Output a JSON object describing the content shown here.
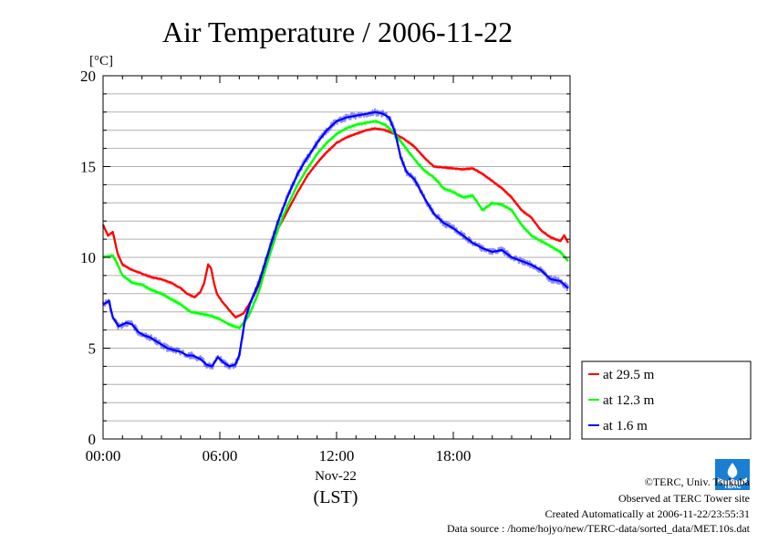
{
  "chart_data": {
    "type": "line",
    "title": "Air Temperature / 2006-11-22",
    "ylabel": "[°C]",
    "xlabel": "(LST)",
    "date_label": "Nov-22",
    "ylim": [
      0,
      20
    ],
    "xlim": [
      0,
      24
    ],
    "yticks": [
      "0",
      "5",
      "10",
      "15",
      "20"
    ],
    "xticks": [
      {
        "hour": 0,
        "label": "00:00"
      },
      {
        "hour": 6,
        "label": "06:00"
      },
      {
        "hour": 12,
        "label": "12:00"
      },
      {
        "hour": 18,
        "label": "18:00"
      }
    ],
    "grid": true,
    "legend_position": "bottom-right",
    "series": [
      {
        "name": "at 29.5 m",
        "color": "#ff0000",
        "points": [
          [
            0,
            11.8
          ],
          [
            0.25,
            11.2
          ],
          [
            0.5,
            11.4
          ],
          [
            0.75,
            10.2
          ],
          [
            1.0,
            9.6
          ],
          [
            1.5,
            9.3
          ],
          [
            2.0,
            9.1
          ],
          [
            2.5,
            8.9
          ],
          [
            3.0,
            8.8
          ],
          [
            3.5,
            8.6
          ],
          [
            4.0,
            8.3
          ],
          [
            4.3,
            8.0
          ],
          [
            4.7,
            7.8
          ],
          [
            5.0,
            8.1
          ],
          [
            5.2,
            8.6
          ],
          [
            5.4,
            9.6
          ],
          [
            5.55,
            9.4
          ],
          [
            5.7,
            8.6
          ],
          [
            5.85,
            8.0
          ],
          [
            6.1,
            7.6
          ],
          [
            6.4,
            7.2
          ],
          [
            6.8,
            6.7
          ],
          [
            7.2,
            6.9
          ],
          [
            7.5,
            7.4
          ],
          [
            7.8,
            8.0
          ],
          [
            8.2,
            9.0
          ],
          [
            8.6,
            10.3
          ],
          [
            9.0,
            11.6
          ],
          [
            9.5,
            12.6
          ],
          [
            10.0,
            13.6
          ],
          [
            10.5,
            14.5
          ],
          [
            11.0,
            15.2
          ],
          [
            11.5,
            15.8
          ],
          [
            12.0,
            16.3
          ],
          [
            12.5,
            16.6
          ],
          [
            13.0,
            16.8
          ],
          [
            13.5,
            17.0
          ],
          [
            14.0,
            17.1
          ],
          [
            14.5,
            17.0
          ],
          [
            15.0,
            16.8
          ],
          [
            15.5,
            16.5
          ],
          [
            16.0,
            16.1
          ],
          [
            16.5,
            15.5
          ],
          [
            17.0,
            15.0
          ],
          [
            17.5,
            14.95
          ],
          [
            18.0,
            14.9
          ],
          [
            18.5,
            14.85
          ],
          [
            19.0,
            14.9
          ],
          [
            19.5,
            14.6
          ],
          [
            20.0,
            14.2
          ],
          [
            20.5,
            13.8
          ],
          [
            21.0,
            13.3
          ],
          [
            21.5,
            12.6
          ],
          [
            22.0,
            12.2
          ],
          [
            22.5,
            11.5
          ],
          [
            23.0,
            11.1
          ],
          [
            23.5,
            10.9
          ],
          [
            23.7,
            11.2
          ],
          [
            23.9,
            10.8
          ]
        ]
      },
      {
        "name": "at 12.3 m",
        "color": "#00ff00",
        "points": [
          [
            0,
            10.0
          ],
          [
            0.5,
            10.1
          ],
          [
            0.75,
            9.6
          ],
          [
            1.0,
            9.0
          ],
          [
            1.5,
            8.6
          ],
          [
            2.0,
            8.5
          ],
          [
            2.5,
            8.2
          ],
          [
            3.0,
            8.0
          ],
          [
            3.5,
            7.7
          ],
          [
            4.0,
            7.4
          ],
          [
            4.5,
            7.0
          ],
          [
            5.0,
            6.9
          ],
          [
            5.5,
            6.8
          ],
          [
            6.0,
            6.6
          ],
          [
            6.5,
            6.3
          ],
          [
            7.0,
            6.1
          ],
          [
            7.5,
            6.8
          ],
          [
            8.0,
            8.1
          ],
          [
            8.5,
            9.9
          ],
          [
            9.0,
            11.6
          ],
          [
            9.5,
            12.9
          ],
          [
            10.0,
            14.0
          ],
          [
            10.5,
            14.9
          ],
          [
            11.0,
            15.7
          ],
          [
            11.5,
            16.3
          ],
          [
            12.0,
            16.8
          ],
          [
            12.5,
            17.1
          ],
          [
            13.0,
            17.3
          ],
          [
            13.5,
            17.4
          ],
          [
            14.0,
            17.5
          ],
          [
            14.5,
            17.3
          ],
          [
            15.0,
            16.8
          ],
          [
            15.5,
            16.1
          ],
          [
            16.0,
            15.4
          ],
          [
            16.5,
            14.8
          ],
          [
            17.0,
            14.4
          ],
          [
            17.5,
            13.8
          ],
          [
            18.0,
            13.6
          ],
          [
            18.5,
            13.3
          ],
          [
            19.0,
            13.4
          ],
          [
            19.5,
            12.6
          ],
          [
            20.0,
            13.0
          ],
          [
            20.5,
            12.9
          ],
          [
            21.0,
            12.6
          ],
          [
            21.5,
            11.8
          ],
          [
            22.0,
            11.2
          ],
          [
            22.5,
            10.9
          ],
          [
            23.0,
            10.6
          ],
          [
            23.5,
            10.3
          ],
          [
            23.9,
            9.8
          ]
        ]
      },
      {
        "name": "at 1.6 m",
        "color": "#0000ff",
        "points": [
          [
            0,
            7.4
          ],
          [
            0.3,
            7.6
          ],
          [
            0.5,
            6.7
          ],
          [
            0.8,
            6.2
          ],
          [
            1.2,
            6.4
          ],
          [
            1.5,
            6.3
          ],
          [
            1.8,
            5.9
          ],
          [
            2.1,
            5.7
          ],
          [
            2.4,
            5.6
          ],
          [
            2.7,
            5.4
          ],
          [
            3.0,
            5.2
          ],
          [
            3.3,
            5.0
          ],
          [
            3.6,
            4.9
          ],
          [
            4.0,
            4.8
          ],
          [
            4.3,
            4.6
          ],
          [
            4.6,
            4.6
          ],
          [
            5.0,
            4.4
          ],
          [
            5.3,
            4.1
          ],
          [
            5.6,
            4.0
          ],
          [
            5.9,
            4.5
          ],
          [
            6.2,
            4.2
          ],
          [
            6.5,
            4.0
          ],
          [
            6.8,
            4.1
          ],
          [
            7.0,
            4.6
          ],
          [
            7.3,
            6.6
          ],
          [
            7.6,
            7.6
          ],
          [
            8.0,
            8.6
          ],
          [
            8.5,
            10.3
          ],
          [
            9.0,
            12.0
          ],
          [
            9.5,
            13.4
          ],
          [
            10.0,
            14.6
          ],
          [
            10.5,
            15.5
          ],
          [
            11.0,
            16.3
          ],
          [
            11.5,
            17.0
          ],
          [
            12.0,
            17.5
          ],
          [
            12.5,
            17.7
          ],
          [
            13.0,
            17.8
          ],
          [
            13.5,
            17.9
          ],
          [
            14.0,
            18.0
          ],
          [
            14.4,
            17.9
          ],
          [
            14.7,
            17.7
          ],
          [
            15.0,
            16.9
          ],
          [
            15.3,
            15.5
          ],
          [
            15.6,
            14.7
          ],
          [
            16.0,
            14.3
          ],
          [
            16.5,
            13.3
          ],
          [
            17.0,
            12.4
          ],
          [
            17.5,
            11.9
          ],
          [
            18.0,
            11.6
          ],
          [
            18.5,
            11.2
          ],
          [
            19.0,
            10.8
          ],
          [
            19.5,
            10.5
          ],
          [
            20.0,
            10.3
          ],
          [
            20.5,
            10.4
          ],
          [
            21.0,
            10.0
          ],
          [
            21.5,
            9.8
          ],
          [
            22.0,
            9.6
          ],
          [
            22.5,
            9.3
          ],
          [
            23.0,
            8.8
          ],
          [
            23.5,
            8.7
          ],
          [
            23.9,
            8.3
          ]
        ]
      }
    ]
  },
  "footer": {
    "line1": "©TERC, Univ. Tsukuba",
    "line2": "Observed at TERC Tower site",
    "line3": "Created Automatically at 2006-11-22/23:55:31",
    "line4": "Data source : /home/hojyo/new/TERC-data/sorted_data/MET.10s.dat"
  },
  "logo": {
    "text": "TERC"
  }
}
